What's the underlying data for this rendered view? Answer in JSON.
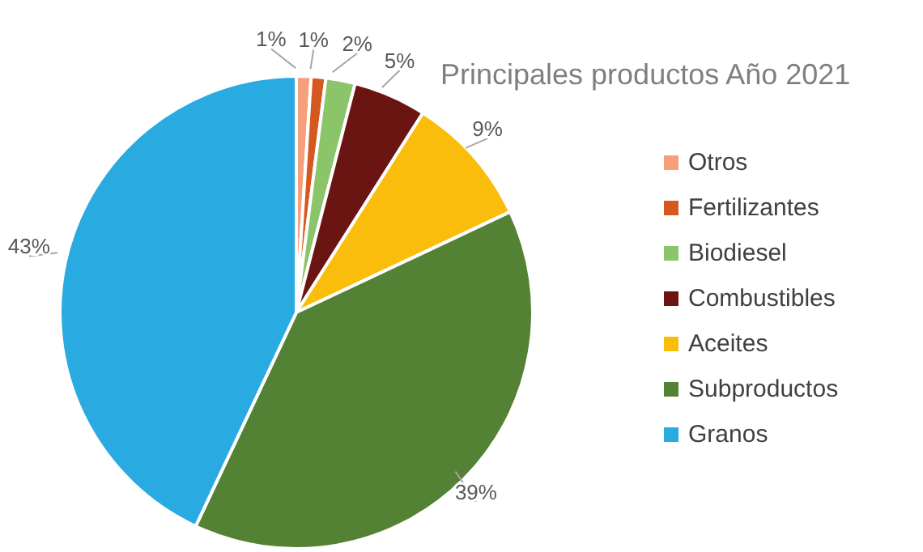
{
  "chart_data": {
    "type": "pie",
    "title": "Principales productos Año 2021",
    "categories": [
      "Otros",
      "Fertilizantes",
      "Biodiesel",
      "Combustibles",
      "Aceites",
      "Subproductos",
      "Granos"
    ],
    "values": [
      1,
      1,
      2,
      5,
      9,
      39,
      43
    ],
    "value_labels": [
      "1%",
      "1%",
      "2%",
      "5%",
      "9%",
      "39%",
      "43%"
    ],
    "colors": [
      "#f4a07a",
      "#d4581f",
      "#8cc46a",
      "#6b1512",
      "#fbbd0c",
      "#548235",
      "#29abe2"
    ],
    "legend": "right"
  }
}
